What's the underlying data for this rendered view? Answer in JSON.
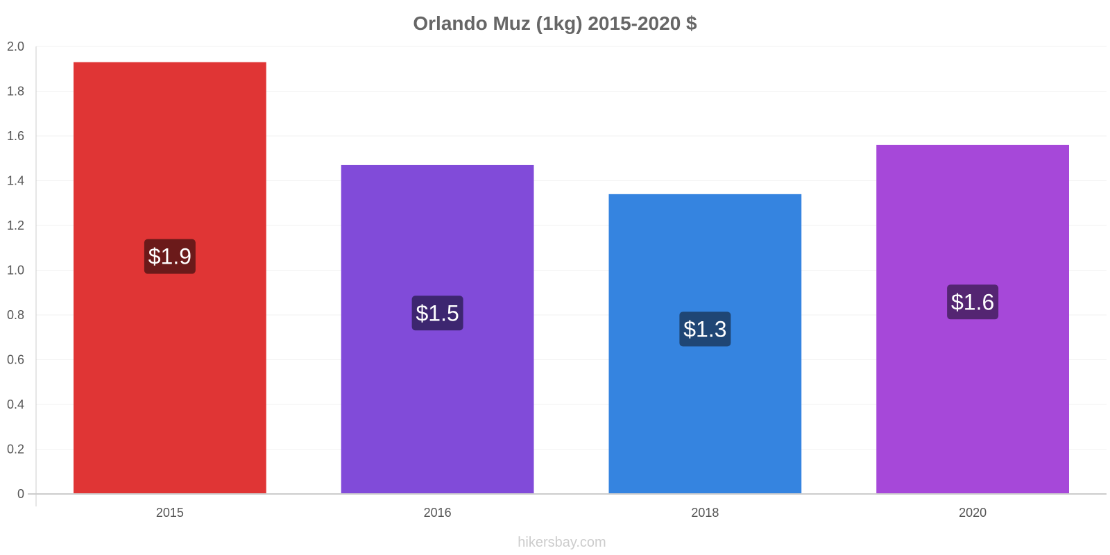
{
  "chart_data": {
    "type": "bar",
    "title": "Orlando Muz (1kg) 2015-2020 $",
    "categories": [
      "2015",
      "2016",
      "2018",
      "2020"
    ],
    "values": [
      1.93,
      1.47,
      1.34,
      1.56
    ],
    "data_labels": [
      "$1.9",
      "$1.5",
      "$1.3",
      "$1.6"
    ],
    "bar_colors": [
      "#e03535",
      "#814bd9",
      "#3584e0",
      "#a648d9"
    ],
    "label_bg_colors": [
      "#6b1a1a",
      "#3d2670",
      "#1f4675",
      "#542572"
    ],
    "ylim": [
      0,
      2.0
    ],
    "yticks": [
      "0",
      "0.2",
      "0.4",
      "0.6",
      "0.8",
      "1.0",
      "1.2",
      "1.4",
      "1.6",
      "1.8",
      "2.0"
    ],
    "grid": true,
    "legend": "none"
  },
  "source": "hikersbay.com"
}
